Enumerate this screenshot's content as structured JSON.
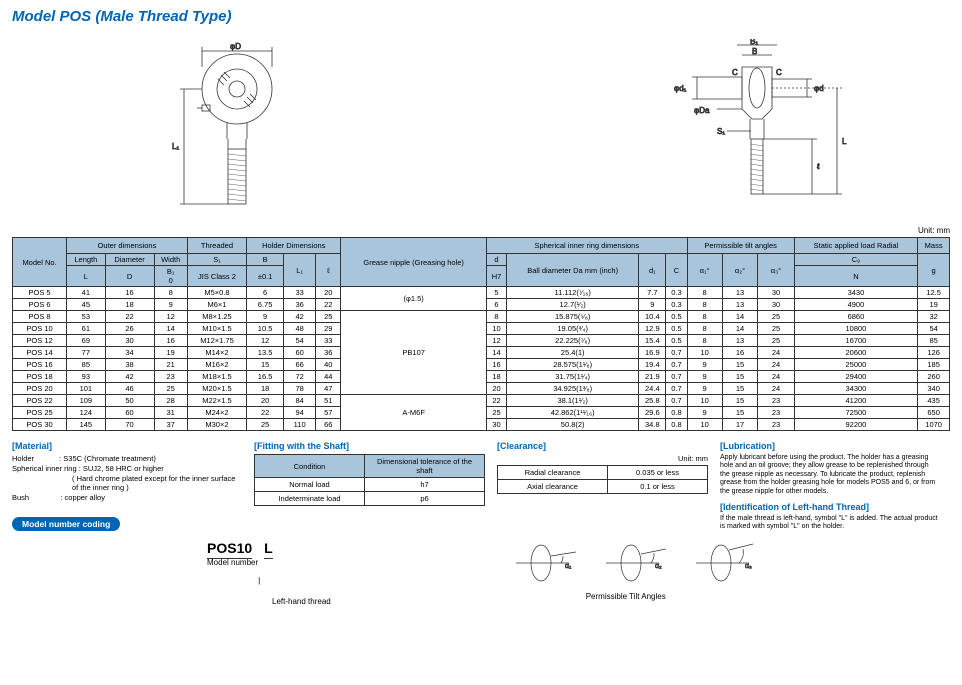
{
  "title": "Model POS (Male Thread Type)",
  "unit": "Unit: mm",
  "headers": {
    "model_no": "Model No.",
    "outer": "Outer dimensions",
    "length": "Length",
    "diameter": "Diameter",
    "width": "Width",
    "L": "L",
    "D": "D",
    "B1": "B₁",
    "zero": "0",
    "threaded": "Threaded",
    "S1": "S₁",
    "jis": "JIS Class 2",
    "holder_dim": "Holder Dimensions",
    "B": "B",
    "Btol": "±0.1",
    "L1": "L₁",
    "ell": "ℓ",
    "grease": "Grease nipple (Greasing hole)",
    "sphere": "Spherical inner ring dimensions",
    "d": "d",
    "H7": "H7",
    "ball_dia": "Ball diameter Da mm (inch)",
    "d1": "d₁",
    "C": "C",
    "tilt": "Permissible tilt angles",
    "a1": "α₁°",
    "a2": "α₂°",
    "a3": "α₃°",
    "static": "Static applied load Radial",
    "Cs": "C₉",
    "N": "N",
    "mass": "Mass",
    "g": "g"
  },
  "rows": [
    {
      "m": "POS 5",
      "L": "41",
      "D": "16",
      "B1": "8",
      "S": "M5×0.8",
      "B": "6",
      "L1": "33",
      "l": "20",
      "g": "(φ1.5)",
      "d": "5",
      "Da": "11.112(⁷⁄₁₆)",
      "d1": "7.7",
      "C": "0.3",
      "a1": "8",
      "a2": "13",
      "a3": "30",
      "Cs": "3430",
      "mass": "12.5"
    },
    {
      "m": "POS 6",
      "L": "45",
      "D": "18",
      "B1": "9",
      "S": "M6×1",
      "B": "6.75",
      "L1": "36",
      "l": "22",
      "g": "",
      "d": "6",
      "Da": "12.7(¹⁄₂)",
      "d1": "9",
      "C": "0.3",
      "a1": "8",
      "a2": "13",
      "a3": "30",
      "Cs": "4900",
      "mass": "19"
    },
    {
      "m": "POS 8",
      "L": "53",
      "D": "22",
      "B1": "12",
      "S": "M8×1.25",
      "B": "9",
      "L1": "42",
      "l": "25",
      "g": "PB107",
      "d": "8",
      "Da": "15.875(⁵⁄₈)",
      "d1": "10.4",
      "C": "0.5",
      "a1": "8",
      "a2": "14",
      "a3": "25",
      "Cs": "6860",
      "mass": "32"
    },
    {
      "m": "POS 10",
      "L": "61",
      "D": "26",
      "B1": "14",
      "S": "M10×1.5",
      "B": "10.5",
      "L1": "48",
      "l": "29",
      "g": "",
      "d": "10",
      "Da": "19.05(³⁄₄)",
      "d1": "12.9",
      "C": "0.5",
      "a1": "8",
      "a2": "14",
      "a3": "25",
      "Cs": "10800",
      "mass": "54"
    },
    {
      "m": "POS 12",
      "L": "69",
      "D": "30",
      "B1": "16",
      "S": "M12×1.75",
      "B": "12",
      "L1": "54",
      "l": "33",
      "g": "",
      "d": "12",
      "Da": "22.225(⁷⁄₈)",
      "d1": "15.4",
      "C": "0.5",
      "a1": "8",
      "a2": "13",
      "a3": "25",
      "Cs": "16700",
      "mass": "85"
    },
    {
      "m": "POS 14",
      "L": "77",
      "D": "34",
      "B1": "19",
      "S": "M14×2",
      "B": "13.5",
      "L1": "60",
      "l": "36",
      "g": "",
      "d": "14",
      "Da": "25.4(1)",
      "d1": "16.9",
      "C": "0.7",
      "a1": "10",
      "a2": "16",
      "a3": "24",
      "Cs": "20600",
      "mass": "126"
    },
    {
      "m": "POS 16",
      "L": "85",
      "D": "38",
      "B1": "21",
      "S": "M16×2",
      "B": "15",
      "L1": "66",
      "l": "40",
      "g": "",
      "d": "16",
      "Da": "28.575(1¹⁄₈)",
      "d1": "19.4",
      "C": "0.7",
      "a1": "9",
      "a2": "15",
      "a3": "24",
      "Cs": "25000",
      "mass": "185"
    },
    {
      "m": "POS 18",
      "L": "93",
      "D": "42",
      "B1": "23",
      "S": "M18×1.5",
      "B": "16.5",
      "L1": "72",
      "l": "44",
      "g": "",
      "d": "18",
      "Da": "31.75(1¹⁄₄)",
      "d1": "21.9",
      "C": "0.7",
      "a1": "9",
      "a2": "15",
      "a3": "24",
      "Cs": "29400",
      "mass": "260"
    },
    {
      "m": "POS 20",
      "L": "101",
      "D": "46",
      "B1": "25",
      "S": "M20×1.5",
      "B": "18",
      "L1": "78",
      "l": "47",
      "g": "",
      "d": "20",
      "Da": "34.925(1³⁄₈)",
      "d1": "24.4",
      "C": "0.7",
      "a1": "9",
      "a2": "15",
      "a3": "24",
      "Cs": "34300",
      "mass": "340"
    },
    {
      "m": "POS 22",
      "L": "109",
      "D": "50",
      "B1": "28",
      "S": "M22×1.5",
      "B": "20",
      "L1": "84",
      "l": "51",
      "g": "A-M6F",
      "d": "22",
      "Da": "38.1(1¹⁄₂)",
      "d1": "25.8",
      "C": "0.7",
      "a1": "10",
      "a2": "15",
      "a3": "23",
      "Cs": "41200",
      "mass": "435"
    },
    {
      "m": "POS 25",
      "L": "124",
      "D": "60",
      "B1": "31",
      "S": "M24×2",
      "B": "22",
      "L1": "94",
      "l": "57",
      "g": "",
      "d": "25",
      "Da": "42.862(1¹¹⁄₁₆)",
      "d1": "29.6",
      "C": "0.8",
      "a1": "9",
      "a2": "15",
      "a3": "23",
      "Cs": "72500",
      "mass": "650"
    },
    {
      "m": "POS 30",
      "L": "145",
      "D": "70",
      "B1": "37",
      "S": "M30×2",
      "B": "25",
      "L1": "110",
      "l": "66",
      "g": "",
      "d": "30",
      "Da": "50.8(2)",
      "d1": "34.8",
      "C": "0.8",
      "a1": "10",
      "a2": "17",
      "a3": "23",
      "Cs": "92200",
      "mass": "1070"
    }
  ],
  "material": {
    "title": "[Material]",
    "holder_label": "Holder",
    "holder_val": ": S35C (Chromate treatment)",
    "inner_label": "Spherical inner ring",
    "inner_val": ": SUJ2, 58 HRC or higher",
    "inner_note": "Hard chrome plated except for the inner surface of the inner ring",
    "bush_label": "Bush",
    "bush_val": ": copper alloy"
  },
  "fitting": {
    "title": "[Fitting with the Shaft]",
    "h1": "Condition",
    "h2": "Dimensional tolerance of the shaft",
    "r1a": "Normal load",
    "r1b": "h7",
    "r2a": "Indeterminate load",
    "r2b": "p6"
  },
  "clearance": {
    "title": "[Clearance]",
    "unit": "Unit: mm",
    "r1a": "Radial clearance",
    "r1b": "0.035 or less",
    "r2a": "Axial clearance",
    "r2b": "0.1 or less"
  },
  "lubrication": {
    "title": "[Lubrication]",
    "text": "Apply lubricant before using the product. The holder has a greasing hole and an oil groove; they allow grease to be replenished through the grease nipple as necessary. To lubricate the product, replenish grease from the holder greasing hole for models POS5 and 6, or from the grease nipple for other models."
  },
  "lefthand": {
    "title": "[Identification of Left-hand Thread]",
    "text": "If the male thread is left-hand, symbol \"L\" is added. The actual product is marked with symbol \"L\" on the holder."
  },
  "coding_badge": "Model number coding",
  "coding": {
    "model": "POS10",
    "left": "L",
    "model_label": "Model number",
    "left_label": "Left-hand thread"
  },
  "tilt_caption": "Permissible Tilt Angles",
  "tilt_labels": {
    "a1": "α₁",
    "a2": "α₂",
    "a3": "α₃"
  },
  "diagram_labels": {
    "phiD": "φD",
    "L1": "L₁",
    "B1": "B₁",
    "B": "B",
    "phid1": "φd₁",
    "C": "C",
    "phid": "φd",
    "phiDa": "φDa",
    "S1": "S₁",
    "L": "L",
    "ell": "ℓ"
  },
  "colors": {
    "header_bg": "#a8c5dc",
    "title": "#0066b3",
    "line": "#333333"
  }
}
